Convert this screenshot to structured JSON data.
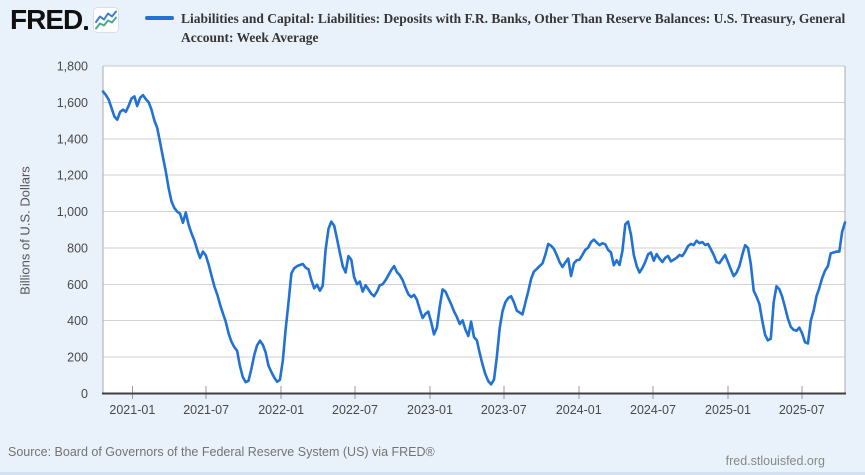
{
  "header": {
    "logo_text": "FRED",
    "series_title": "Liabilities and Capital: Liabilities: Deposits with F.R. Banks, Other Than Reserve Balances: U.S. Treasury, General Account: Week Average",
    "legend_color": "#2272d3"
  },
  "footer": {
    "source_text": "Source: Board of Governors of the Federal Reserve System (US) via FRED®",
    "site_link": "fred.stlouisfed.org"
  },
  "chart_data": {
    "type": "line",
    "title": "Liabilities and Capital: Liabilities: Deposits with F.R. Banks, Other Than Reserve Balances: U.S. Treasury, General Account: Week Average",
    "xlabel": "",
    "ylabel": "Billions of U.S. Dollars",
    "ylim": [
      0,
      1800
    ],
    "y_ticks": [
      0,
      200,
      400,
      600,
      800,
      1000,
      1200,
      1400,
      1600,
      1800
    ],
    "x_tick_labels": [
      "2021-01",
      "2021-07",
      "2022-01",
      "2022-07",
      "2023-01",
      "2023-07",
      "2024-01",
      "2024-07",
      "2025-01",
      "2025-07"
    ],
    "x_range": [
      "2020-10-21",
      "2025-10-15"
    ],
    "grid": "horizontal",
    "grid_color": "#d2d2d2",
    "line_color": "#2272d3",
    "legend_position": "top",
    "points": [
      [
        "2020-10-21",
        1660
      ],
      [
        "2020-10-28",
        1640
      ],
      [
        "2020-11-04",
        1615
      ],
      [
        "2020-11-11",
        1568
      ],
      [
        "2020-11-18",
        1522
      ],
      [
        "2020-11-25",
        1505
      ],
      [
        "2020-12-02",
        1548
      ],
      [
        "2020-12-09",
        1560
      ],
      [
        "2020-12-16",
        1548
      ],
      [
        "2020-12-23",
        1582
      ],
      [
        "2020-12-30",
        1622
      ],
      [
        "2021-01-06",
        1633
      ],
      [
        "2021-01-13",
        1580
      ],
      [
        "2021-01-20",
        1625
      ],
      [
        "2021-01-27",
        1640
      ],
      [
        "2021-02-03",
        1618
      ],
      [
        "2021-02-10",
        1600
      ],
      [
        "2021-02-17",
        1560
      ],
      [
        "2021-02-24",
        1500
      ],
      [
        "2021-03-03",
        1460
      ],
      [
        "2021-03-10",
        1380
      ],
      [
        "2021-03-17",
        1300
      ],
      [
        "2021-03-24",
        1220
      ],
      [
        "2021-03-31",
        1130
      ],
      [
        "2021-04-07",
        1055
      ],
      [
        "2021-04-14",
        1020
      ],
      [
        "2021-04-21",
        1000
      ],
      [
        "2021-04-28",
        988
      ],
      [
        "2021-05-05",
        938
      ],
      [
        "2021-05-12",
        995
      ],
      [
        "2021-05-19",
        928
      ],
      [
        "2021-05-26",
        880
      ],
      [
        "2021-06-02",
        842
      ],
      [
        "2021-06-09",
        790
      ],
      [
        "2021-06-16",
        745
      ],
      [
        "2021-06-23",
        780
      ],
      [
        "2021-06-30",
        760
      ],
      [
        "2021-07-07",
        710
      ],
      [
        "2021-07-14",
        650
      ],
      [
        "2021-07-21",
        590
      ],
      [
        "2021-07-28",
        545
      ],
      [
        "2021-08-04",
        490
      ],
      [
        "2021-08-11",
        440
      ],
      [
        "2021-08-18",
        395
      ],
      [
        "2021-08-25",
        330
      ],
      [
        "2021-09-01",
        285
      ],
      [
        "2021-09-08",
        255
      ],
      [
        "2021-09-15",
        235
      ],
      [
        "2021-09-22",
        150
      ],
      [
        "2021-09-29",
        90
      ],
      [
        "2021-10-06",
        62
      ],
      [
        "2021-10-13",
        70
      ],
      [
        "2021-10-20",
        135
      ],
      [
        "2021-10-27",
        212
      ],
      [
        "2021-11-03",
        265
      ],
      [
        "2021-11-10",
        290
      ],
      [
        "2021-11-17",
        268
      ],
      [
        "2021-11-24",
        225
      ],
      [
        "2021-12-01",
        152
      ],
      [
        "2021-12-08",
        118
      ],
      [
        "2021-12-15",
        88
      ],
      [
        "2021-12-22",
        65
      ],
      [
        "2021-12-29",
        75
      ],
      [
        "2022-01-05",
        180
      ],
      [
        "2022-01-12",
        350
      ],
      [
        "2022-01-19",
        500
      ],
      [
        "2022-01-26",
        660
      ],
      [
        "2022-02-02",
        688
      ],
      [
        "2022-02-09",
        700
      ],
      [
        "2022-02-16",
        706
      ],
      [
        "2022-02-23",
        712
      ],
      [
        "2022-03-02",
        692
      ],
      [
        "2022-03-09",
        682
      ],
      [
        "2022-03-16",
        625
      ],
      [
        "2022-03-23",
        578
      ],
      [
        "2022-03-30",
        598
      ],
      [
        "2022-04-06",
        565
      ],
      [
        "2022-04-13",
        592
      ],
      [
        "2022-04-20",
        790
      ],
      [
        "2022-04-27",
        905
      ],
      [
        "2022-05-04",
        945
      ],
      [
        "2022-05-11",
        922
      ],
      [
        "2022-05-18",
        850
      ],
      [
        "2022-05-25",
        772
      ],
      [
        "2022-06-01",
        700
      ],
      [
        "2022-06-08",
        665
      ],
      [
        "2022-06-15",
        755
      ],
      [
        "2022-06-22",
        735
      ],
      [
        "2022-06-29",
        640
      ],
      [
        "2022-07-06",
        600
      ],
      [
        "2022-07-13",
        615
      ],
      [
        "2022-07-20",
        560
      ],
      [
        "2022-07-27",
        595
      ],
      [
        "2022-08-03",
        572
      ],
      [
        "2022-08-10",
        548
      ],
      [
        "2022-08-17",
        535
      ],
      [
        "2022-08-24",
        560
      ],
      [
        "2022-08-31",
        595
      ],
      [
        "2022-09-07",
        600
      ],
      [
        "2022-09-14",
        622
      ],
      [
        "2022-09-21",
        650
      ],
      [
        "2022-09-28",
        678
      ],
      [
        "2022-10-05",
        700
      ],
      [
        "2022-10-12",
        668
      ],
      [
        "2022-10-19",
        650
      ],
      [
        "2022-10-26",
        622
      ],
      [
        "2022-11-02",
        582
      ],
      [
        "2022-11-09",
        545
      ],
      [
        "2022-11-16",
        530
      ],
      [
        "2022-11-23",
        542
      ],
      [
        "2022-11-30",
        515
      ],
      [
        "2022-12-07",
        462
      ],
      [
        "2022-12-14",
        415
      ],
      [
        "2022-12-21",
        438
      ],
      [
        "2022-12-28",
        450
      ],
      [
        "2023-01-04",
        392
      ],
      [
        "2023-01-11",
        325
      ],
      [
        "2023-01-18",
        362
      ],
      [
        "2023-01-25",
        480
      ],
      [
        "2023-02-01",
        572
      ],
      [
        "2023-02-08",
        560
      ],
      [
        "2023-02-15",
        525
      ],
      [
        "2023-02-22",
        490
      ],
      [
        "2023-03-01",
        452
      ],
      [
        "2023-03-08",
        420
      ],
      [
        "2023-03-15",
        382
      ],
      [
        "2023-03-22",
        402
      ],
      [
        "2023-03-29",
        352
      ],
      [
        "2023-04-05",
        316
      ],
      [
        "2023-04-12",
        395
      ],
      [
        "2023-04-19",
        310
      ],
      [
        "2023-04-26",
        292
      ],
      [
        "2023-05-03",
        222
      ],
      [
        "2023-05-10",
        158
      ],
      [
        "2023-05-17",
        105
      ],
      [
        "2023-05-24",
        68
      ],
      [
        "2023-05-31",
        50
      ],
      [
        "2023-06-07",
        76
      ],
      [
        "2023-06-14",
        200
      ],
      [
        "2023-06-21",
        360
      ],
      [
        "2023-06-28",
        452
      ],
      [
        "2023-07-05",
        502
      ],
      [
        "2023-07-12",
        525
      ],
      [
        "2023-07-19",
        535
      ],
      [
        "2023-07-26",
        500
      ],
      [
        "2023-08-02",
        455
      ],
      [
        "2023-08-09",
        445
      ],
      [
        "2023-08-16",
        435
      ],
      [
        "2023-08-23",
        500
      ],
      [
        "2023-08-30",
        560
      ],
      [
        "2023-09-06",
        630
      ],
      [
        "2023-09-13",
        670
      ],
      [
        "2023-09-20",
        685
      ],
      [
        "2023-09-27",
        700
      ],
      [
        "2023-10-04",
        715
      ],
      [
        "2023-10-11",
        762
      ],
      [
        "2023-10-18",
        822
      ],
      [
        "2023-10-25",
        812
      ],
      [
        "2023-11-01",
        795
      ],
      [
        "2023-11-08",
        760
      ],
      [
        "2023-11-15",
        722
      ],
      [
        "2023-11-22",
        695
      ],
      [
        "2023-11-29",
        720
      ],
      [
        "2023-12-06",
        742
      ],
      [
        "2023-12-13",
        645
      ],
      [
        "2023-12-20",
        715
      ],
      [
        "2023-12-27",
        732
      ],
      [
        "2024-01-03",
        736
      ],
      [
        "2024-01-10",
        762
      ],
      [
        "2024-01-17",
        790
      ],
      [
        "2024-01-24",
        802
      ],
      [
        "2024-01-31",
        832
      ],
      [
        "2024-02-07",
        846
      ],
      [
        "2024-02-14",
        830
      ],
      [
        "2024-02-21",
        815
      ],
      [
        "2024-02-28",
        826
      ],
      [
        "2024-03-06",
        820
      ],
      [
        "2024-03-13",
        790
      ],
      [
        "2024-03-20",
        775
      ],
      [
        "2024-03-27",
        705
      ],
      [
        "2024-04-03",
        732
      ],
      [
        "2024-04-10",
        706
      ],
      [
        "2024-04-17",
        782
      ],
      [
        "2024-04-24",
        930
      ],
      [
        "2024-05-01",
        945
      ],
      [
        "2024-05-08",
        872
      ],
      [
        "2024-05-15",
        762
      ],
      [
        "2024-05-22",
        700
      ],
      [
        "2024-05-29",
        665
      ],
      [
        "2024-06-05",
        690
      ],
      [
        "2024-06-12",
        722
      ],
      [
        "2024-06-19",
        765
      ],
      [
        "2024-06-26",
        775
      ],
      [
        "2024-07-03",
        730
      ],
      [
        "2024-07-10",
        766
      ],
      [
        "2024-07-17",
        742
      ],
      [
        "2024-07-24",
        722
      ],
      [
        "2024-07-31",
        746
      ],
      [
        "2024-08-07",
        756
      ],
      [
        "2024-08-14",
        726
      ],
      [
        "2024-08-21",
        736
      ],
      [
        "2024-08-28",
        746
      ],
      [
        "2024-09-04",
        762
      ],
      [
        "2024-09-11",
        755
      ],
      [
        "2024-09-18",
        780
      ],
      [
        "2024-09-25",
        810
      ],
      [
        "2024-10-02",
        822
      ],
      [
        "2024-10-09",
        816
      ],
      [
        "2024-10-16",
        840
      ],
      [
        "2024-10-23",
        826
      ],
      [
        "2024-10-30",
        832
      ],
      [
        "2024-11-06",
        816
      ],
      [
        "2024-11-13",
        822
      ],
      [
        "2024-11-20",
        792
      ],
      [
        "2024-11-27",
        762
      ],
      [
        "2024-12-04",
        722
      ],
      [
        "2024-12-11",
        716
      ],
      [
        "2024-12-18",
        740
      ],
      [
        "2024-12-25",
        762
      ],
      [
        "2025-01-01",
        722
      ],
      [
        "2025-01-08",
        682
      ],
      [
        "2025-01-15",
        645
      ],
      [
        "2025-01-22",
        665
      ],
      [
        "2025-01-29",
        700
      ],
      [
        "2025-02-05",
        762
      ],
      [
        "2025-02-12",
        815
      ],
      [
        "2025-02-19",
        800
      ],
      [
        "2025-02-26",
        712
      ],
      [
        "2025-03-05",
        565
      ],
      [
        "2025-03-12",
        532
      ],
      [
        "2025-03-19",
        492
      ],
      [
        "2025-03-26",
        402
      ],
      [
        "2025-04-02",
        322
      ],
      [
        "2025-04-09",
        292
      ],
      [
        "2025-04-16",
        302
      ],
      [
        "2025-04-23",
        502
      ],
      [
        "2025-04-30",
        590
      ],
      [
        "2025-05-07",
        572
      ],
      [
        "2025-05-14",
        532
      ],
      [
        "2025-05-21",
        472
      ],
      [
        "2025-05-28",
        412
      ],
      [
        "2025-06-04",
        366
      ],
      [
        "2025-06-11",
        350
      ],
      [
        "2025-06-18",
        345
      ],
      [
        "2025-06-25",
        362
      ],
      [
        "2025-07-02",
        330
      ],
      [
        "2025-07-09",
        282
      ],
      [
        "2025-07-16",
        275
      ],
      [
        "2025-07-23",
        400
      ],
      [
        "2025-07-30",
        455
      ],
      [
        "2025-08-06",
        535
      ],
      [
        "2025-08-13",
        580
      ],
      [
        "2025-08-20",
        635
      ],
      [
        "2025-08-27",
        675
      ],
      [
        "2025-09-03",
        700
      ],
      [
        "2025-09-10",
        770
      ],
      [
        "2025-09-17",
        775
      ],
      [
        "2025-09-24",
        780
      ],
      [
        "2025-10-01",
        780
      ],
      [
        "2025-10-08",
        888
      ],
      [
        "2025-10-15",
        940
      ]
    ]
  }
}
